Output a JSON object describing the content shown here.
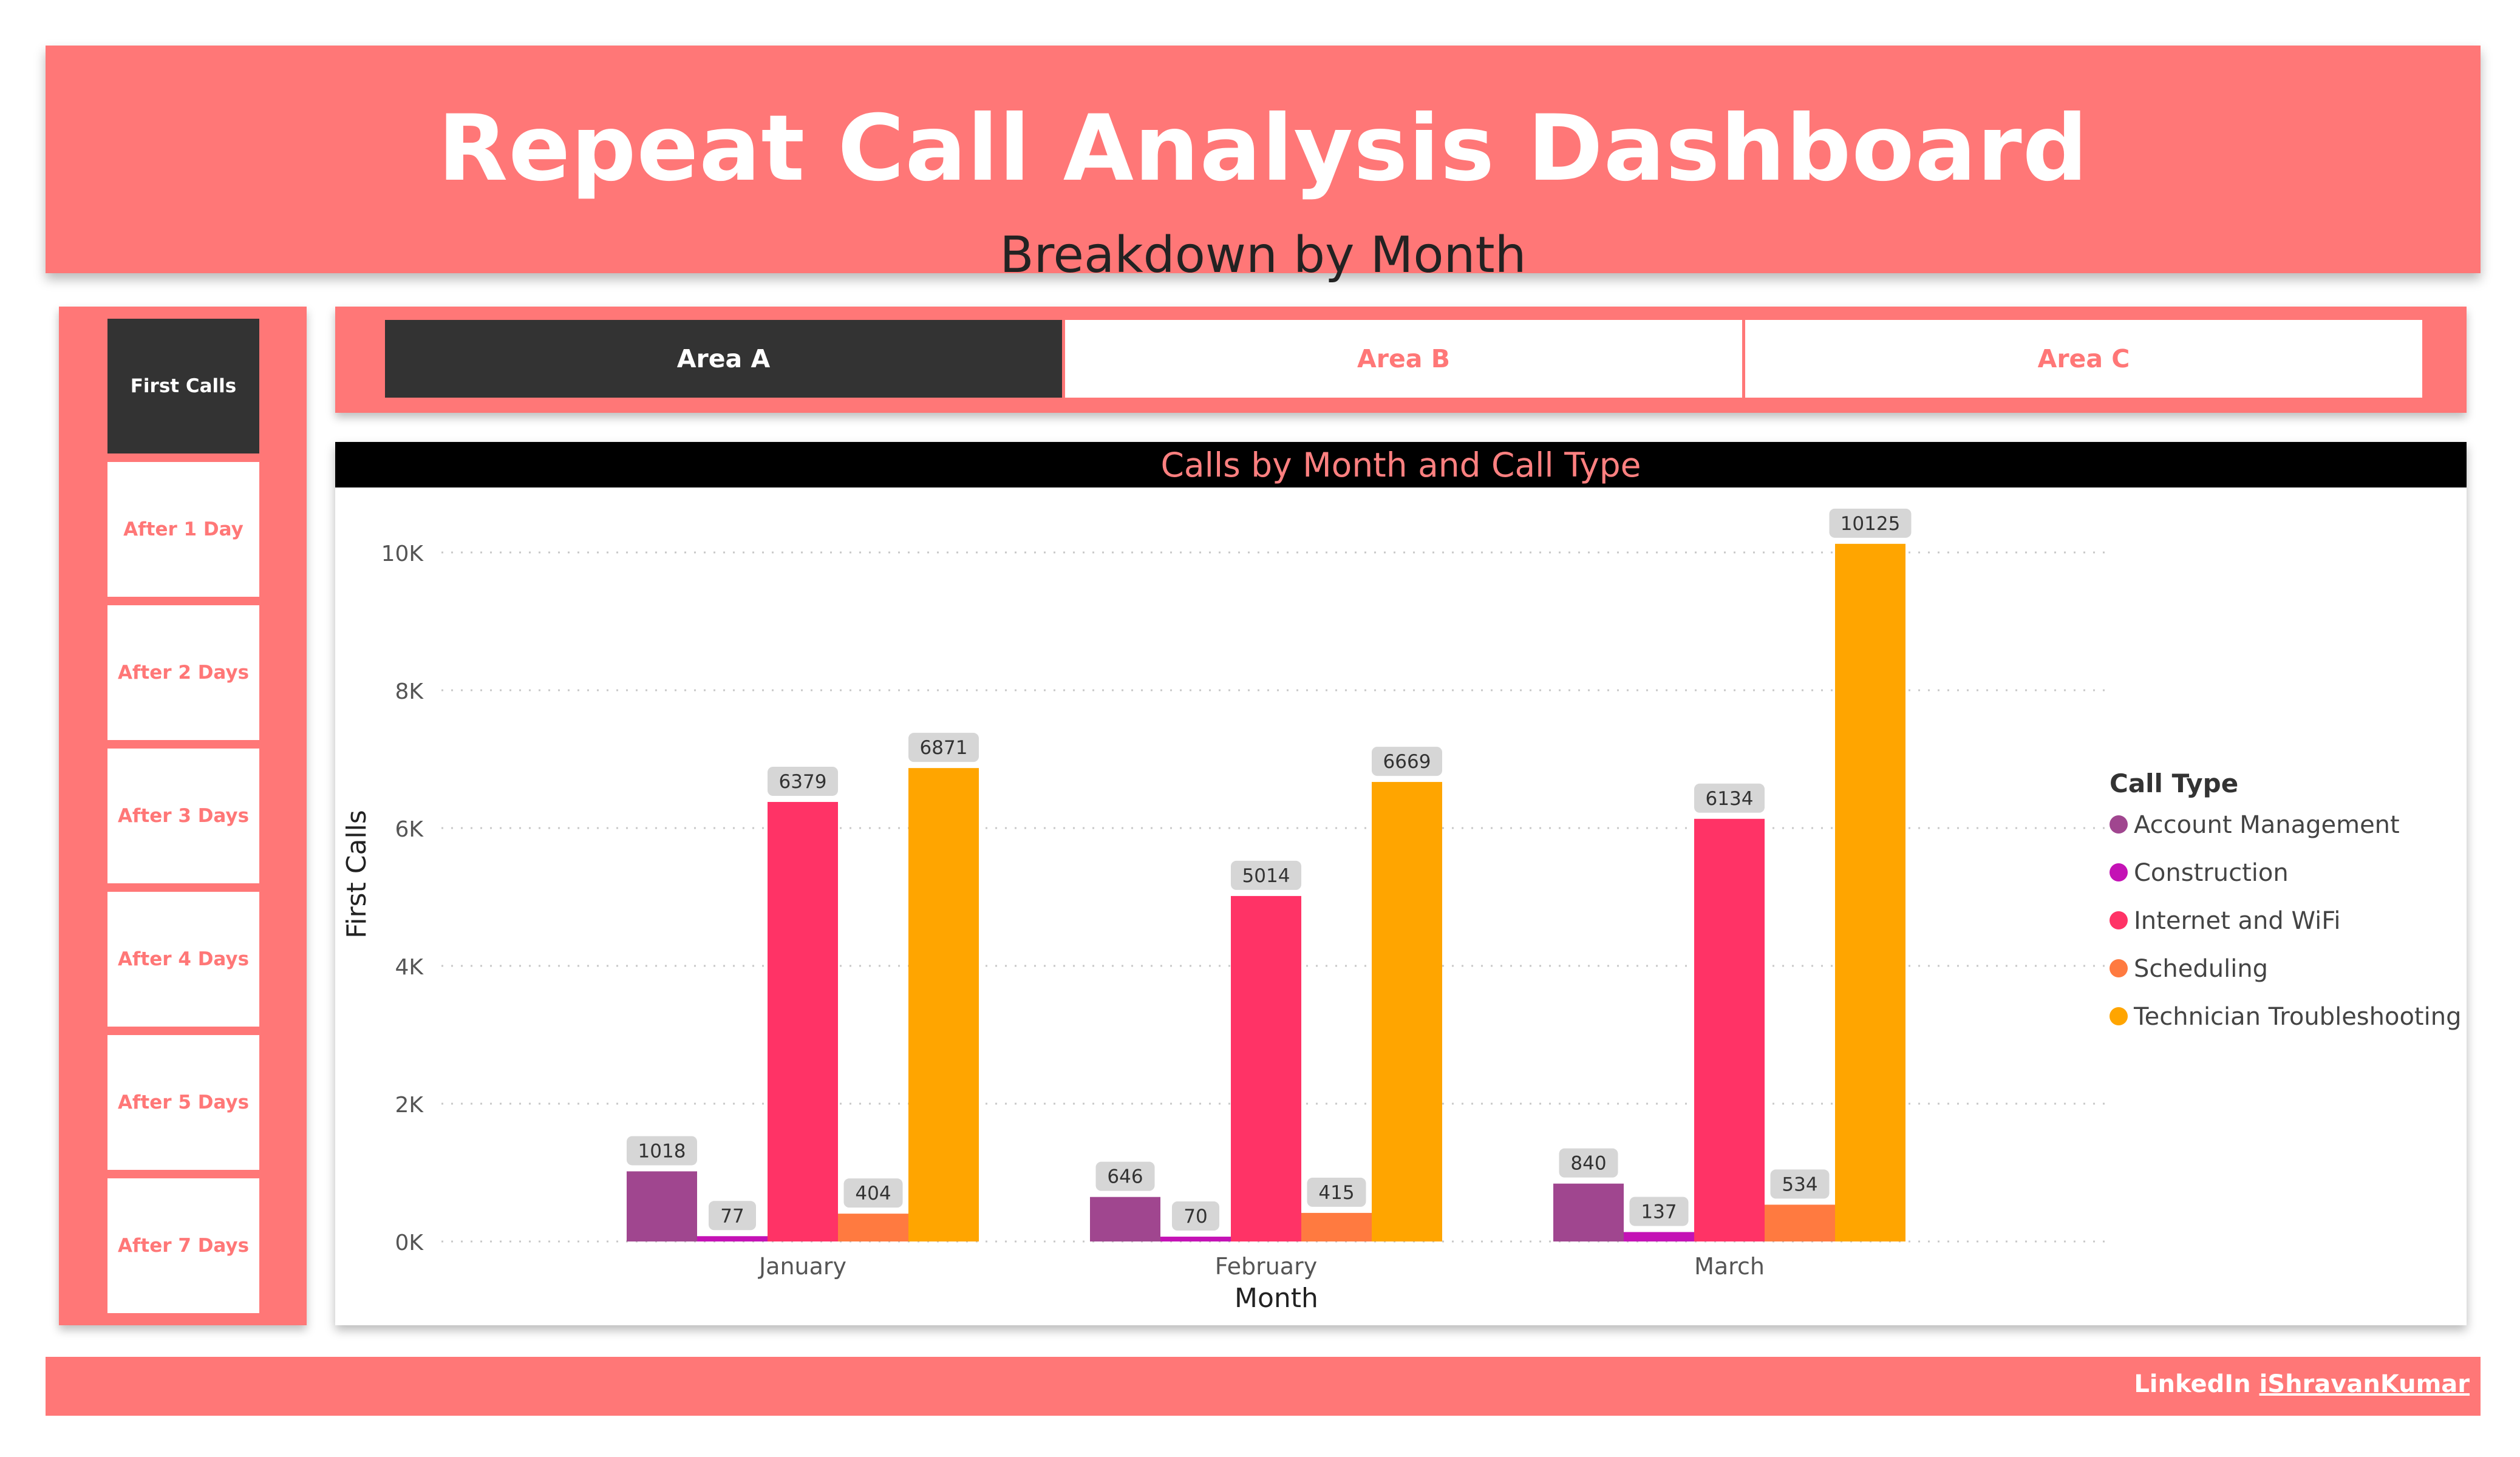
{
  "header": {
    "title": "Repeat Call Analysis Dashboard",
    "subtitle": "Breakdown by Month"
  },
  "sidebar": {
    "items": [
      {
        "label": "First Calls",
        "active": true
      },
      {
        "label": "After 1 Day",
        "active": false
      },
      {
        "label": "After 2 Days",
        "active": false
      },
      {
        "label": "After 3 Days",
        "active": false
      },
      {
        "label": "After 4 Days",
        "active": false
      },
      {
        "label": "After 5 Days",
        "active": false
      },
      {
        "label": "After 7 Days",
        "active": false
      }
    ]
  },
  "tabs": [
    {
      "label": "Area A",
      "active": true
    },
    {
      "label": "Area B",
      "active": false
    },
    {
      "label": "Area C",
      "active": false
    }
  ],
  "chart_data": {
    "type": "bar",
    "title": "Calls by Month and Call Type",
    "xlabel": "Month",
    "ylabel": "First Calls",
    "categories": [
      "January",
      "February",
      "March"
    ],
    "ylim": [
      0,
      10000
    ],
    "yticks": [
      0,
      2000,
      4000,
      6000,
      8000,
      10000
    ],
    "ytick_labels": [
      "0K",
      "2K",
      "4K",
      "6K",
      "8K",
      "10K"
    ],
    "grid": true,
    "legend_title": "Call Type",
    "legend_position": "right",
    "series": [
      {
        "name": "Account Management",
        "color": "#a0468f",
        "values": [
          1018,
          646,
          840
        ]
      },
      {
        "name": "Construction",
        "color": "#c412b5",
        "values": [
          77,
          70,
          137
        ]
      },
      {
        "name": "Internet and WiFi",
        "color": "#ff3366",
        "values": [
          6379,
          5014,
          6134
        ]
      },
      {
        "name": "Scheduling",
        "color": "#ff7a40",
        "values": [
          404,
          415,
          534
        ]
      },
      {
        "name": "Technician Troubleshooting",
        "color": "#ffa500",
        "values": [
          6871,
          6669,
          10125
        ]
      }
    ]
  },
  "footer": {
    "prefix": "LinkedIn ",
    "link": "iShravanKumar"
  }
}
